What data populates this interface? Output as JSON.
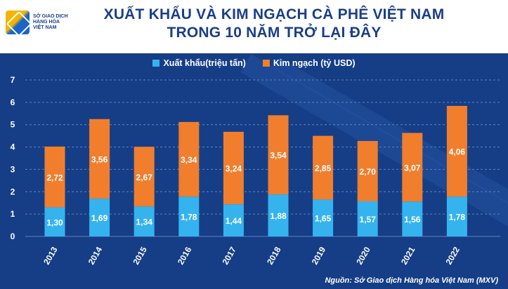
{
  "header": {
    "logo_line1": "SỞ GIAO DỊCH",
    "logo_line2": "HÀNG HÓA",
    "logo_line3": "VIỆT NAM",
    "title_line1": "XUẤT KHẨU VÀ KIM NGẠCH CÀ PHÊ VIỆT NAM",
    "title_line2": "TRONG 10 NĂM TRỞ LẠI ĐÂY"
  },
  "colors": {
    "export": "#35b3ee",
    "turnover": "#f07e2d",
    "background": "#163e86",
    "grid": "#5d80bd"
  },
  "chart_data": {
    "type": "bar",
    "stacked": true,
    "categories": [
      "2013",
      "2014",
      "2015",
      "2016",
      "2017",
      "2018",
      "2019",
      "2020",
      "2021",
      "2022"
    ],
    "series": [
      {
        "name": "Xuất khẩu(triệu tấn)",
        "values": [
          1.3,
          1.69,
          1.34,
          1.78,
          1.44,
          1.88,
          1.65,
          1.57,
          1.56,
          1.78
        ],
        "labels": [
          "1,30",
          "1,69",
          "1,34",
          "1,78",
          "1,44",
          "1,88",
          "1,65",
          "1,57",
          "1,56",
          "1,78"
        ]
      },
      {
        "name": "Kim ngạch (tỷ USD)",
        "values": [
          2.72,
          3.56,
          2.67,
          3.34,
          3.24,
          3.54,
          2.85,
          2.7,
          3.07,
          4.06
        ],
        "labels": [
          "2,72",
          "3,56",
          "2,67",
          "3,34",
          "3,24",
          "3,54",
          "2,85",
          "2,70",
          "3,07",
          "4,06"
        ]
      }
    ],
    "yticks": [
      "0",
      "1",
      "2",
      "3",
      "4",
      "5",
      "6",
      "7"
    ],
    "ylim": [
      0,
      7
    ],
    "title": "XUẤT KHẨU VÀ KIM NGẠCH CÀ PHÊ VIỆT NAM TRONG 10 NĂM TRỞ LẠI ĐÂY",
    "legend_position": "top-center",
    "grid": true
  },
  "source": "Nguồn: Sở Giao dịch Hàng hóa Việt Nam (MXV)"
}
